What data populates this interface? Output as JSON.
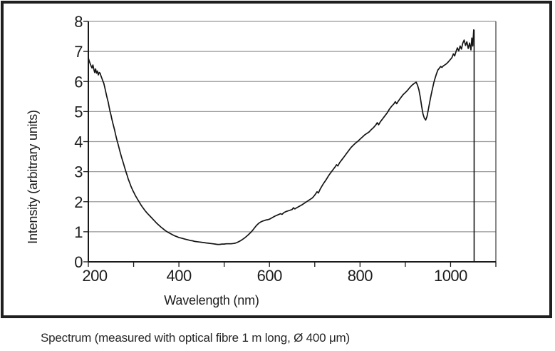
{
  "figure": {
    "caption": "Spectrum (measured with optical fibre 1 m long, Ø 400 μm)"
  },
  "chart_data": {
    "type": "line",
    "title": "",
    "xlabel": "Wavelength (nm)",
    "ylabel": "Intensity (arbitrary units)",
    "xlim": [
      200,
      1100
    ],
    "ylim": [
      0,
      8
    ],
    "x_tick_step": 100,
    "x_labeled_ticks": [
      200,
      400,
      600,
      800,
      1000
    ],
    "x_minor_ticks": [
      300,
      500,
      700,
      900,
      1100
    ],
    "y_ticks": [
      0,
      1,
      2,
      3,
      4,
      5,
      6,
      7,
      8
    ],
    "grid": "horizontal",
    "legend": "none",
    "colors": {
      "curve": "#141414",
      "grid": "#999999",
      "axis": "#1a1a1a",
      "plot_right_border": "#4a4a4a",
      "text": "#1d1d1d",
      "frame": "#1f1f1f",
      "background": "#ffffff"
    },
    "annotations": [
      {
        "type": "vline",
        "name": "scan-end-marker",
        "x": 1052,
        "y0": 0,
        "y1": 7.72
      }
    ],
    "series": [
      {
        "name": "spectrum",
        "points": [
          [
            200,
            6.78
          ],
          [
            202,
            6.68
          ],
          [
            204,
            6.6
          ],
          [
            206,
            6.52
          ],
          [
            208,
            6.45
          ],
          [
            210,
            6.55
          ],
          [
            212,
            6.42
          ],
          [
            214,
            6.3
          ],
          [
            216,
            6.42
          ],
          [
            218,
            6.28
          ],
          [
            220,
            6.35
          ],
          [
            222,
            6.22
          ],
          [
            224,
            6.3
          ],
          [
            226,
            6.28
          ],
          [
            228,
            6.18
          ],
          [
            230,
            6.1
          ],
          [
            232,
            6.02
          ],
          [
            234,
            5.95
          ],
          [
            236,
            5.82
          ],
          [
            238,
            5.68
          ],
          [
            240,
            5.55
          ],
          [
            242,
            5.42
          ],
          [
            244,
            5.3
          ],
          [
            246,
            5.15
          ],
          [
            248,
            5.0
          ],
          [
            250,
            4.88
          ],
          [
            252,
            4.75
          ],
          [
            254,
            4.62
          ],
          [
            256,
            4.5
          ],
          [
            258,
            4.38
          ],
          [
            260,
            4.25
          ],
          [
            262,
            4.12
          ],
          [
            264,
            4.0
          ],
          [
            266,
            3.9
          ],
          [
            268,
            3.78
          ],
          [
            270,
            3.66
          ],
          [
            272,
            3.55
          ],
          [
            274,
            3.45
          ],
          [
            276,
            3.35
          ],
          [
            278,
            3.25
          ],
          [
            280,
            3.15
          ],
          [
            282,
            3.05
          ],
          [
            284,
            2.95
          ],
          [
            286,
            2.86
          ],
          [
            288,
            2.76
          ],
          [
            290,
            2.68
          ],
          [
            292,
            2.6
          ],
          [
            294,
            2.52
          ],
          [
            296,
            2.45
          ],
          [
            298,
            2.38
          ],
          [
            300,
            2.32
          ],
          [
            304,
            2.2
          ],
          [
            308,
            2.1
          ],
          [
            312,
            2.0
          ],
          [
            316,
            1.9
          ],
          [
            320,
            1.81
          ],
          [
            325,
            1.71
          ],
          [
            330,
            1.62
          ],
          [
            335,
            1.54
          ],
          [
            340,
            1.46
          ],
          [
            345,
            1.38
          ],
          [
            350,
            1.3
          ],
          [
            355,
            1.23
          ],
          [
            360,
            1.16
          ],
          [
            365,
            1.1
          ],
          [
            370,
            1.04
          ],
          [
            375,
            0.99
          ],
          [
            380,
            0.95
          ],
          [
            385,
            0.91
          ],
          [
            390,
            0.87
          ],
          [
            395,
            0.84
          ],
          [
            400,
            0.81
          ],
          [
            405,
            0.79
          ],
          [
            410,
            0.77
          ],
          [
            415,
            0.75
          ],
          [
            420,
            0.73
          ],
          [
            425,
            0.71
          ],
          [
            430,
            0.7
          ],
          [
            435,
            0.68
          ],
          [
            440,
            0.67
          ],
          [
            445,
            0.66
          ],
          [
            450,
            0.65
          ],
          [
            455,
            0.64
          ],
          [
            460,
            0.63
          ],
          [
            465,
            0.62
          ],
          [
            470,
            0.61
          ],
          [
            475,
            0.6
          ],
          [
            480,
            0.59
          ],
          [
            485,
            0.58
          ],
          [
            490,
            0.58
          ],
          [
            495,
            0.59
          ],
          [
            500,
            0.59
          ],
          [
            505,
            0.6
          ],
          [
            510,
            0.6
          ],
          [
            515,
            0.6
          ],
          [
            520,
            0.61
          ],
          [
            524,
            0.62
          ],
          [
            528,
            0.64
          ],
          [
            532,
            0.67
          ],
          [
            536,
            0.7
          ],
          [
            540,
            0.74
          ],
          [
            544,
            0.78
          ],
          [
            548,
            0.83
          ],
          [
            552,
            0.88
          ],
          [
            556,
            0.94
          ],
          [
            560,
            1.0
          ],
          [
            564,
            1.07
          ],
          [
            568,
            1.15
          ],
          [
            572,
            1.22
          ],
          [
            576,
            1.28
          ],
          [
            580,
            1.32
          ],
          [
            584,
            1.35
          ],
          [
            588,
            1.37
          ],
          [
            592,
            1.39
          ],
          [
            596,
            1.4
          ],
          [
            600,
            1.42
          ],
          [
            606,
            1.47
          ],
          [
            612,
            1.52
          ],
          [
            618,
            1.56
          ],
          [
            624,
            1.6
          ],
          [
            628,
            1.58
          ],
          [
            632,
            1.64
          ],
          [
            638,
            1.68
          ],
          [
            644,
            1.71
          ],
          [
            650,
            1.74
          ],
          [
            653,
            1.8
          ],
          [
            656,
            1.76
          ],
          [
            660,
            1.8
          ],
          [
            666,
            1.85
          ],
          [
            672,
            1.9
          ],
          [
            678,
            1.96
          ],
          [
            684,
            2.02
          ],
          [
            690,
            2.08
          ],
          [
            695,
            2.13
          ],
          [
            700,
            2.22
          ],
          [
            705,
            2.33
          ],
          [
            708,
            2.29
          ],
          [
            712,
            2.42
          ],
          [
            716,
            2.52
          ],
          [
            720,
            2.62
          ],
          [
            725,
            2.73
          ],
          [
            730,
            2.85
          ],
          [
            735,
            2.96
          ],
          [
            740,
            3.06
          ],
          [
            745,
            3.16
          ],
          [
            748,
            3.23
          ],
          [
            751,
            3.19
          ],
          [
            755,
            3.3
          ],
          [
            760,
            3.4
          ],
          [
            765,
            3.5
          ],
          [
            770,
            3.6
          ],
          [
            775,
            3.7
          ],
          [
            780,
            3.8
          ],
          [
            785,
            3.88
          ],
          [
            790,
            3.95
          ],
          [
            795,
            4.01
          ],
          [
            800,
            4.08
          ],
          [
            805,
            4.15
          ],
          [
            810,
            4.22
          ],
          [
            815,
            4.27
          ],
          [
            820,
            4.32
          ],
          [
            825,
            4.4
          ],
          [
            830,
            4.47
          ],
          [
            835,
            4.56
          ],
          [
            838,
            4.63
          ],
          [
            841,
            4.56
          ],
          [
            845,
            4.66
          ],
          [
            850,
            4.76
          ],
          [
            855,
            4.86
          ],
          [
            860,
            4.96
          ],
          [
            865,
            5.08
          ],
          [
            870,
            5.18
          ],
          [
            875,
            5.26
          ],
          [
            878,
            5.33
          ],
          [
            881,
            5.26
          ],
          [
            885,
            5.36
          ],
          [
            890,
            5.46
          ],
          [
            895,
            5.56
          ],
          [
            900,
            5.63
          ],
          [
            905,
            5.71
          ],
          [
            910,
            5.8
          ],
          [
            915,
            5.88
          ],
          [
            920,
            5.94
          ],
          [
            924,
            5.98
          ],
          [
            927,
            5.88
          ],
          [
            930,
            5.72
          ],
          [
            933,
            5.48
          ],
          [
            936,
            5.18
          ],
          [
            939,
            4.92
          ],
          [
            942,
            4.78
          ],
          [
            945,
            4.72
          ],
          [
            948,
            4.84
          ],
          [
            951,
            5.08
          ],
          [
            954,
            5.32
          ],
          [
            957,
            5.55
          ],
          [
            960,
            5.76
          ],
          [
            963,
            5.96
          ],
          [
            966,
            6.12
          ],
          [
            969,
            6.26
          ],
          [
            972,
            6.38
          ],
          [
            975,
            6.44
          ],
          [
            978,
            6.5
          ],
          [
            981,
            6.47
          ],
          [
            984,
            6.52
          ],
          [
            987,
            6.55
          ],
          [
            990,
            6.58
          ],
          [
            993,
            6.62
          ],
          [
            996,
            6.67
          ],
          [
            1000,
            6.74
          ],
          [
            1003,
            6.8
          ],
          [
            1006,
            6.92
          ],
          [
            1009,
            6.85
          ],
          [
            1012,
            7.0
          ],
          [
            1015,
            7.12
          ],
          [
            1018,
            7.02
          ],
          [
            1021,
            7.18
          ],
          [
            1024,
            7.08
          ],
          [
            1027,
            7.28
          ],
          [
            1030,
            7.38
          ],
          [
            1033,
            7.2
          ],
          [
            1036,
            7.32
          ],
          [
            1039,
            7.1
          ],
          [
            1042,
            7.28
          ],
          [
            1045,
            7.05
          ],
          [
            1047,
            7.45
          ],
          [
            1049,
            7.18
          ],
          [
            1051,
            7.72
          ]
        ]
      }
    ]
  }
}
